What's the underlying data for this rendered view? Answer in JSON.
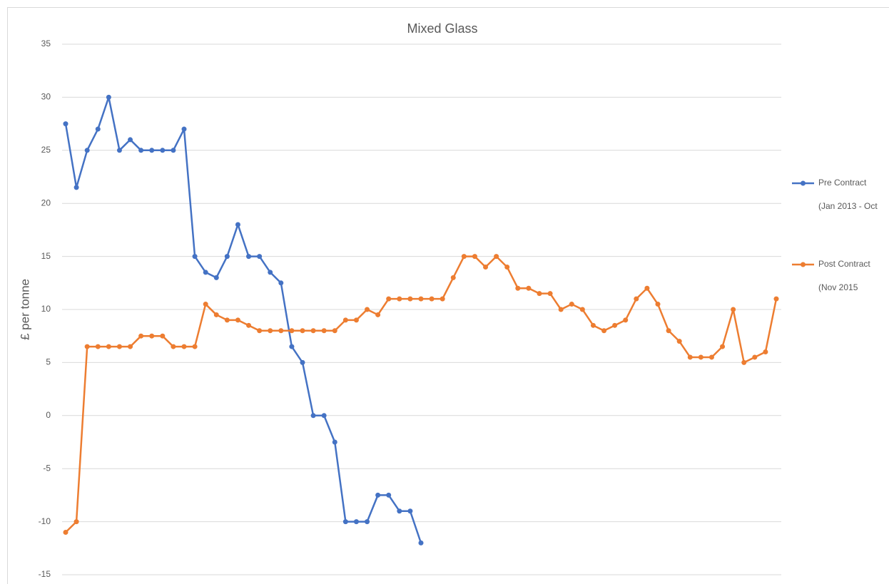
{
  "chart_data": {
    "type": "line",
    "title": "Mixed Glass",
    "y_label": "£ per tonne",
    "categories": [
      null,
      null,
      null,
      null,
      null,
      null,
      null,
      null,
      null,
      null,
      null,
      null,
      null,
      null,
      null,
      null,
      null,
      null,
      null,
      null,
      null,
      null,
      null,
      null,
      null,
      null,
      null,
      null,
      null,
      null,
      null,
      null,
      null,
      null,
      null,
      null,
      null,
      null,
      null,
      null,
      null,
      null,
      null,
      null,
      null,
      null,
      null,
      null,
      null,
      null,
      null,
      null,
      null,
      null,
      null,
      null,
      null,
      null,
      null,
      null,
      null,
      null,
      null,
      null,
      null,
      null,
      null
    ],
    "series": [
      {
        "name": "Pre Contract",
        "name_line2": "(Jan 2013 - Oct",
        "color": "#4472c4",
        "values": [
          27.5,
          21.5,
          25,
          27,
          30,
          25,
          26,
          25,
          25,
          25,
          25,
          27,
          15,
          13.5,
          13,
          15,
          18,
          15,
          15,
          13.5,
          12.5,
          6.5,
          5,
          0,
          0,
          -2.5,
          -10,
          -10,
          -10,
          -7.5,
          -7.5,
          -9,
          -9,
          -12,
          null,
          null,
          null,
          null,
          null,
          null,
          null,
          null,
          null,
          null,
          null,
          null,
          null,
          null,
          null,
          null,
          null,
          null,
          null,
          null,
          null,
          null,
          null,
          null,
          null,
          null,
          null,
          null,
          null,
          null,
          null,
          null,
          null
        ]
      },
      {
        "name": "Post Contract",
        "name_line2": "(Nov 2015",
        "color": "#ed7d31",
        "values": [
          -11,
          -10,
          6.5,
          6.5,
          6.5,
          6.5,
          6.5,
          7.5,
          7.5,
          7.5,
          6.5,
          6.5,
          6.5,
          10.5,
          9.5,
          9,
          9,
          8.5,
          8,
          8,
          8,
          8,
          8,
          8,
          8,
          8,
          9,
          9,
          10,
          9.5,
          11,
          11,
          11,
          11,
          11,
          11,
          13,
          15,
          15,
          14,
          15,
          14,
          12,
          12,
          11.5,
          11.5,
          10,
          10.5,
          10,
          8.5,
          8,
          8.5,
          9,
          11,
          12,
          10.5,
          8,
          7,
          5.5,
          5.5,
          5.5,
          6.5,
          10,
          5,
          5.5,
          6,
          11
        ]
      }
    ],
    "ylim": [
      -15,
      35
    ],
    "yticks": [
      -15,
      -10,
      -5,
      0,
      5,
      10,
      15,
      20,
      25,
      30,
      35
    ],
    "grid": true,
    "legend": "right"
  }
}
